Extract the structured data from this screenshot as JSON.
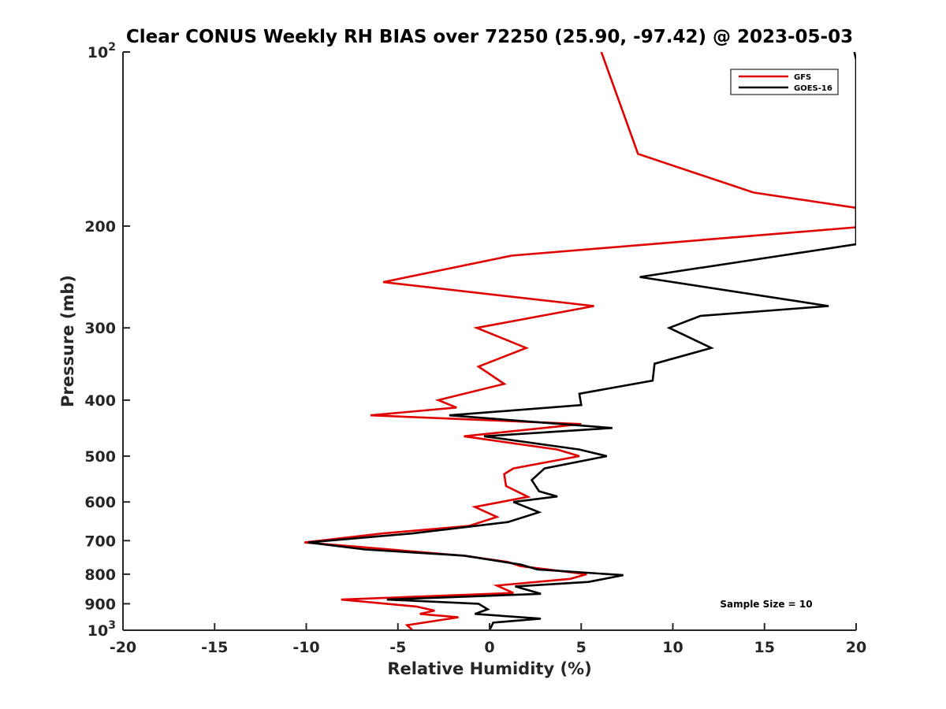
{
  "chart_data": {
    "type": "line",
    "title": "Clear CONUS Weekly RH BIAS over 72250 (25.90, -97.42) @ 2023-05-03",
    "xlabel": "Relative Humidity (%)",
    "ylabel": "Pressure (mb)",
    "xlim": [
      -20,
      20
    ],
    "ylim": [
      1000,
      100
    ],
    "yscale": "log",
    "grid": false,
    "legend_position": "top-right",
    "x_ticks": [
      "-20",
      "-15",
      "-10",
      "-5",
      "0",
      "5",
      "10",
      "15",
      "20"
    ],
    "y_ticks": [
      {
        "value": 100,
        "base": "10",
        "exp": "2"
      },
      {
        "value": 200,
        "label": "200"
      },
      {
        "value": 300,
        "label": "300"
      },
      {
        "value": 400,
        "label": "400"
      },
      {
        "value": 500,
        "label": "500"
      },
      {
        "value": 600,
        "label": "600"
      },
      {
        "value": 700,
        "label": "700"
      },
      {
        "value": 800,
        "label": "800"
      },
      {
        "value": 900,
        "label": "900"
      },
      {
        "value": 1000,
        "base": "10",
        "exp": "3"
      }
    ],
    "annotation": "Sample Size = 10",
    "series": [
      {
        "name": "GFS",
        "color": "#e00000",
        "points": [
          [
            6.1,
            100
          ],
          [
            7.2,
            125
          ],
          [
            8.1,
            150
          ],
          [
            14.4,
            175
          ],
          [
            20,
            186
          ],
          [
            20,
            201
          ],
          [
            1.2,
            225
          ],
          [
            -5.8,
            250
          ],
          [
            5.7,
            275
          ],
          [
            -0.7,
            300
          ],
          [
            2.0,
            325
          ],
          [
            -0.6,
            350
          ],
          [
            0.8,
            375
          ],
          [
            -2.8,
            400
          ],
          [
            -1.8,
            412
          ],
          [
            -6.5,
            425
          ],
          [
            5.0,
            440
          ],
          [
            -1.4,
            462
          ],
          [
            3.7,
            487
          ],
          [
            4.9,
            500
          ],
          [
            1.3,
            525
          ],
          [
            0.8,
            537
          ],
          [
            0.9,
            563
          ],
          [
            2.1,
            588
          ],
          [
            -0.8,
            612
          ],
          [
            0.4,
            637
          ],
          [
            -1.1,
            660
          ],
          [
            -5.8,
            680
          ],
          [
            -10.1,
            705
          ],
          [
            -7.0,
            718
          ],
          [
            -1.3,
            744
          ],
          [
            1.0,
            762
          ],
          [
            1.7,
            775
          ],
          [
            5.3,
            800
          ],
          [
            4.4,
            815
          ],
          [
            0.4,
            837
          ],
          [
            1.3,
            862
          ],
          [
            -8.1,
            885
          ],
          [
            -4.0,
            910
          ],
          [
            -3.0,
            925
          ],
          [
            -3.8,
            937
          ],
          [
            -1.7,
            950
          ],
          [
            -4.5,
            980
          ],
          [
            -4.2,
            1000
          ]
        ]
      },
      {
        "name": "GOES-16",
        "color": "#000000",
        "points": [
          [
            19.9,
            100
          ],
          [
            20.0,
            103
          ],
          [
            20,
            215
          ],
          [
            15.9,
            225
          ],
          [
            8.2,
            245
          ],
          [
            18.5,
            275
          ],
          [
            11.5,
            286
          ],
          [
            9.8,
            300
          ],
          [
            12.1,
            325
          ],
          [
            9.0,
            346
          ],
          [
            8.9,
            370
          ],
          [
            4.9,
            390
          ],
          [
            5.0,
            408
          ],
          [
            -2.2,
            425
          ],
          [
            6.7,
            447
          ],
          [
            -0.3,
            462
          ],
          [
            4.9,
            487
          ],
          [
            6.4,
            500
          ],
          [
            3.0,
            525
          ],
          [
            2.3,
            550
          ],
          [
            2.7,
            575
          ],
          [
            3.7,
            587
          ],
          [
            1.3,
            600
          ],
          [
            2.7,
            625
          ],
          [
            1.0,
            650
          ],
          [
            -4.2,
            680
          ],
          [
            -9.9,
            705
          ],
          [
            -6.8,
            725
          ],
          [
            -1.4,
            743
          ],
          [
            1.7,
            770
          ],
          [
            2.6,
            785
          ],
          [
            7.3,
            803
          ],
          [
            5.4,
            825
          ],
          [
            1.4,
            840
          ],
          [
            2.8,
            865
          ],
          [
            -5.6,
            885
          ],
          [
            -0.6,
            900
          ],
          [
            -0.1,
            920
          ],
          [
            -0.8,
            937
          ],
          [
            2.8,
            955
          ],
          [
            0.2,
            970
          ],
          [
            0,
            1000
          ]
        ]
      }
    ]
  }
}
